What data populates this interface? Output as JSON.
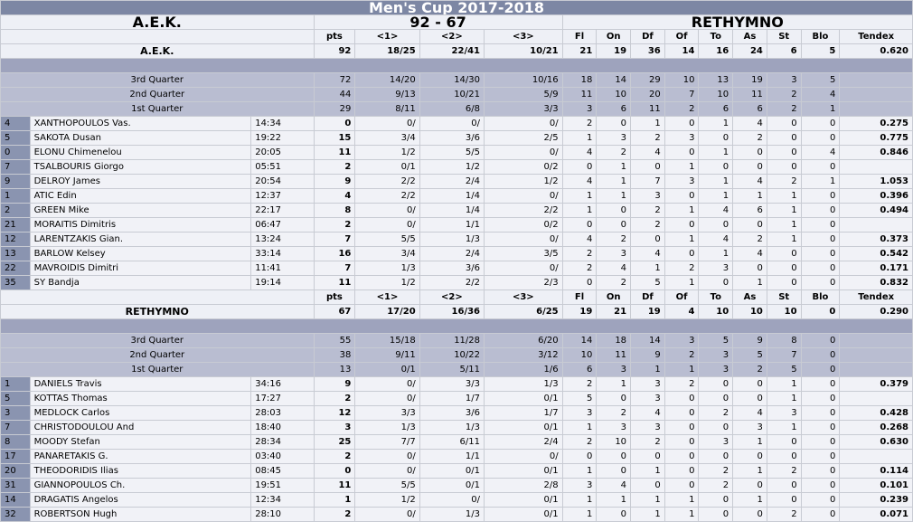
{
  "title": "Men's Cup 2017-2018",
  "team_home": "A.E.K.",
  "team_away": "RETHYMNO",
  "score": "92 - 67",
  "headers": [
    "pts",
    "<1>",
    "<2>",
    "<3>",
    "Fl",
    "On",
    "Df",
    "Of",
    "To",
    "As",
    "St",
    "Blo",
    "Tendex"
  ],
  "home": {
    "name": "A.E.K.",
    "total": [
      "92",
      "18/25",
      "22/41",
      "10/21",
      "21",
      "19",
      "36",
      "14",
      "16",
      "24",
      "6",
      "5",
      "0.620"
    ],
    "quarters": [
      {
        "label": "3rd Quarter",
        "vals": [
          "72",
          "14/20",
          "14/30",
          "10/16",
          "18",
          "14",
          "29",
          "10",
          "13",
          "19",
          "3",
          "5",
          ""
        ]
      },
      {
        "label": "2nd Quarter",
        "vals": [
          "44",
          "9/13",
          "10/21",
          "5/9",
          "11",
          "10",
          "20",
          "7",
          "10",
          "11",
          "2",
          "4",
          ""
        ]
      },
      {
        "label": "1st Quarter",
        "vals": [
          "29",
          "8/11",
          "6/8",
          "3/3",
          "3",
          "6",
          "11",
          "2",
          "6",
          "6",
          "2",
          "1",
          ""
        ]
      }
    ],
    "players": [
      {
        "num": "4",
        "name": "XANTHOPOULOS Vas.",
        "time": "14:34",
        "vals": [
          "0",
          "0/",
          "0/",
          "0/",
          "2",
          "0",
          "1",
          "0",
          "1",
          "4",
          "0",
          "0",
          "0.275"
        ]
      },
      {
        "num": "5",
        "name": "SAKOTA Dusan",
        "time": "19:22",
        "vals": [
          "15",
          "3/4",
          "3/6",
          "2/5",
          "1",
          "3",
          "2",
          "3",
          "0",
          "2",
          "0",
          "0",
          "0.775"
        ]
      },
      {
        "num": "0",
        "name": "ELONU Chimenelou",
        "time": "20:05",
        "vals": [
          "11",
          "1/2",
          "5/5",
          "0/",
          "4",
          "2",
          "4",
          "0",
          "1",
          "0",
          "0",
          "4",
          "0.846"
        ]
      },
      {
        "num": "7",
        "name": "TSALBOURIS Giorgo",
        "time": "05:51",
        "vals": [
          "2",
          "0/1",
          "1/2",
          "0/2",
          "0",
          "1",
          "0",
          "1",
          "0",
          "0",
          "0",
          "0",
          ""
        ]
      },
      {
        "num": "9",
        "name": "DELROY James",
        "time": "20:54",
        "vals": [
          "9",
          "2/2",
          "2/4",
          "1/2",
          "4",
          "1",
          "7",
          "3",
          "1",
          "4",
          "2",
          "1",
          "1.053"
        ]
      },
      {
        "num": "1",
        "name": "ATIC Edin",
        "time": "12:37",
        "vals": [
          "4",
          "2/2",
          "1/4",
          "0/",
          "1",
          "1",
          "3",
          "0",
          "1",
          "1",
          "1",
          "0",
          "0.396"
        ]
      },
      {
        "num": "2",
        "name": "GREEN Mike",
        "time": "22:17",
        "vals": [
          "8",
          "0/",
          "1/4",
          "2/2",
          "1",
          "0",
          "2",
          "1",
          "4",
          "6",
          "1",
          "0",
          "0.494"
        ]
      },
      {
        "num": "21",
        "name": "MORAITIS Dimitris",
        "time": "06:47",
        "vals": [
          "2",
          "0/",
          "1/1",
          "0/2",
          "0",
          "0",
          "2",
          "0",
          "0",
          "0",
          "1",
          "0",
          ""
        ]
      },
      {
        "num": "12",
        "name": "LARENTZAKIS Gian.",
        "time": "13:24",
        "vals": [
          "7",
          "5/5",
          "1/3",
          "0/",
          "4",
          "2",
          "0",
          "1",
          "4",
          "2",
          "1",
          "0",
          "0.373"
        ]
      },
      {
        "num": "13",
        "name": "BARLOW Kelsey",
        "time": "33:14",
        "vals": [
          "16",
          "3/4",
          "2/4",
          "3/5",
          "2",
          "3",
          "4",
          "0",
          "1",
          "4",
          "0",
          "0",
          "0.542"
        ]
      },
      {
        "num": "22",
        "name": "MAVROIDIS Dimitri",
        "time": "11:41",
        "vals": [
          "7",
          "1/3",
          "3/6",
          "0/",
          "2",
          "4",
          "1",
          "2",
          "3",
          "0",
          "0",
          "0",
          "0.171"
        ]
      },
      {
        "num": "35",
        "name": "SY Bandja",
        "time": "19:14",
        "vals": [
          "11",
          "1/2",
          "2/2",
          "2/3",
          "0",
          "2",
          "5",
          "1",
          "0",
          "1",
          "0",
          "0",
          "0.832"
        ]
      }
    ]
  },
  "away": {
    "name": "RETHYMNO",
    "total": [
      "67",
      "17/20",
      "16/36",
      "6/25",
      "19",
      "21",
      "19",
      "4",
      "10",
      "10",
      "10",
      "0",
      "0.290"
    ],
    "quarters": [
      {
        "label": "3rd Quarter",
        "vals": [
          "55",
          "15/18",
          "11/28",
          "6/20",
          "14",
          "18",
          "14",
          "3",
          "5",
          "9",
          "8",
          "0",
          ""
        ]
      },
      {
        "label": "2nd Quarter",
        "vals": [
          "38",
          "9/11",
          "10/22",
          "3/12",
          "10",
          "11",
          "9",
          "2",
          "3",
          "5",
          "7",
          "0",
          ""
        ]
      },
      {
        "label": "1st Quarter",
        "vals": [
          "13",
          "0/1",
          "5/11",
          "1/6",
          "6",
          "3",
          "1",
          "1",
          "3",
          "2",
          "5",
          "0",
          ""
        ]
      }
    ],
    "players": [
      {
        "num": "1",
        "name": "DANIELS Travis",
        "time": "34:16",
        "vals": [
          "9",
          "0/",
          "3/3",
          "1/3",
          "2",
          "1",
          "3",
          "2",
          "0",
          "0",
          "1",
          "0",
          "0.379"
        ]
      },
      {
        "num": "5",
        "name": "KOTTAS Thomas",
        "time": "17:27",
        "vals": [
          "2",
          "0/",
          "1/7",
          "0/1",
          "5",
          "0",
          "3",
          "0",
          "0",
          "0",
          "1",
          "0",
          ""
        ]
      },
      {
        "num": "3",
        "name": "MEDLOCK Carlos",
        "time": "28:03",
        "vals": [
          "12",
          "3/3",
          "3/6",
          "1/7",
          "3",
          "2",
          "4",
          "0",
          "2",
          "4",
          "3",
          "0",
          "0.428"
        ]
      },
      {
        "num": "7",
        "name": "CHRISTODOULOU And",
        "time": "18:40",
        "vals": [
          "3",
          "1/3",
          "1/3",
          "0/1",
          "1",
          "3",
          "3",
          "0",
          "0",
          "3",
          "1",
          "0",
          "0.268"
        ]
      },
      {
        "num": "8",
        "name": "MOODY Stefan",
        "time": "28:34",
        "vals": [
          "25",
          "7/7",
          "6/11",
          "2/4",
          "2",
          "10",
          "2",
          "0",
          "3",
          "1",
          "0",
          "0",
          "0.630"
        ]
      },
      {
        "num": "17",
        "name": "PANARETAKIS G.",
        "time": "03:40",
        "vals": [
          "2",
          "0/",
          "1/1",
          "0/",
          "0",
          "0",
          "0",
          "0",
          "0",
          "0",
          "0",
          "0",
          ""
        ]
      },
      {
        "num": "20",
        "name": "THEODORIDIS Ilias",
        "time": "08:45",
        "vals": [
          "0",
          "0/",
          "0/1",
          "0/1",
          "1",
          "0",
          "1",
          "0",
          "2",
          "1",
          "2",
          "0",
          "0.114"
        ]
      },
      {
        "num": "31",
        "name": "GIANNOPOULOS Ch.",
        "time": "19:51",
        "vals": [
          "11",
          "5/5",
          "0/1",
          "2/8",
          "3",
          "4",
          "0",
          "0",
          "2",
          "0",
          "0",
          "0",
          "0.101"
        ]
      },
      {
        "num": "14",
        "name": "DRAGATIS Angelos",
        "time": "12:34",
        "vals": [
          "1",
          "1/2",
          "0/",
          "0/1",
          "1",
          "1",
          "1",
          "1",
          "0",
          "1",
          "0",
          "0",
          "0.239"
        ]
      },
      {
        "num": "32",
        "name": "ROBERTSON Hugh",
        "time": "28:10",
        "vals": [
          "2",
          "0/",
          "1/3",
          "0/1",
          "1",
          "0",
          "1",
          "1",
          "0",
          "0",
          "2",
          "0",
          "0.071"
        ]
      }
    ]
  }
}
